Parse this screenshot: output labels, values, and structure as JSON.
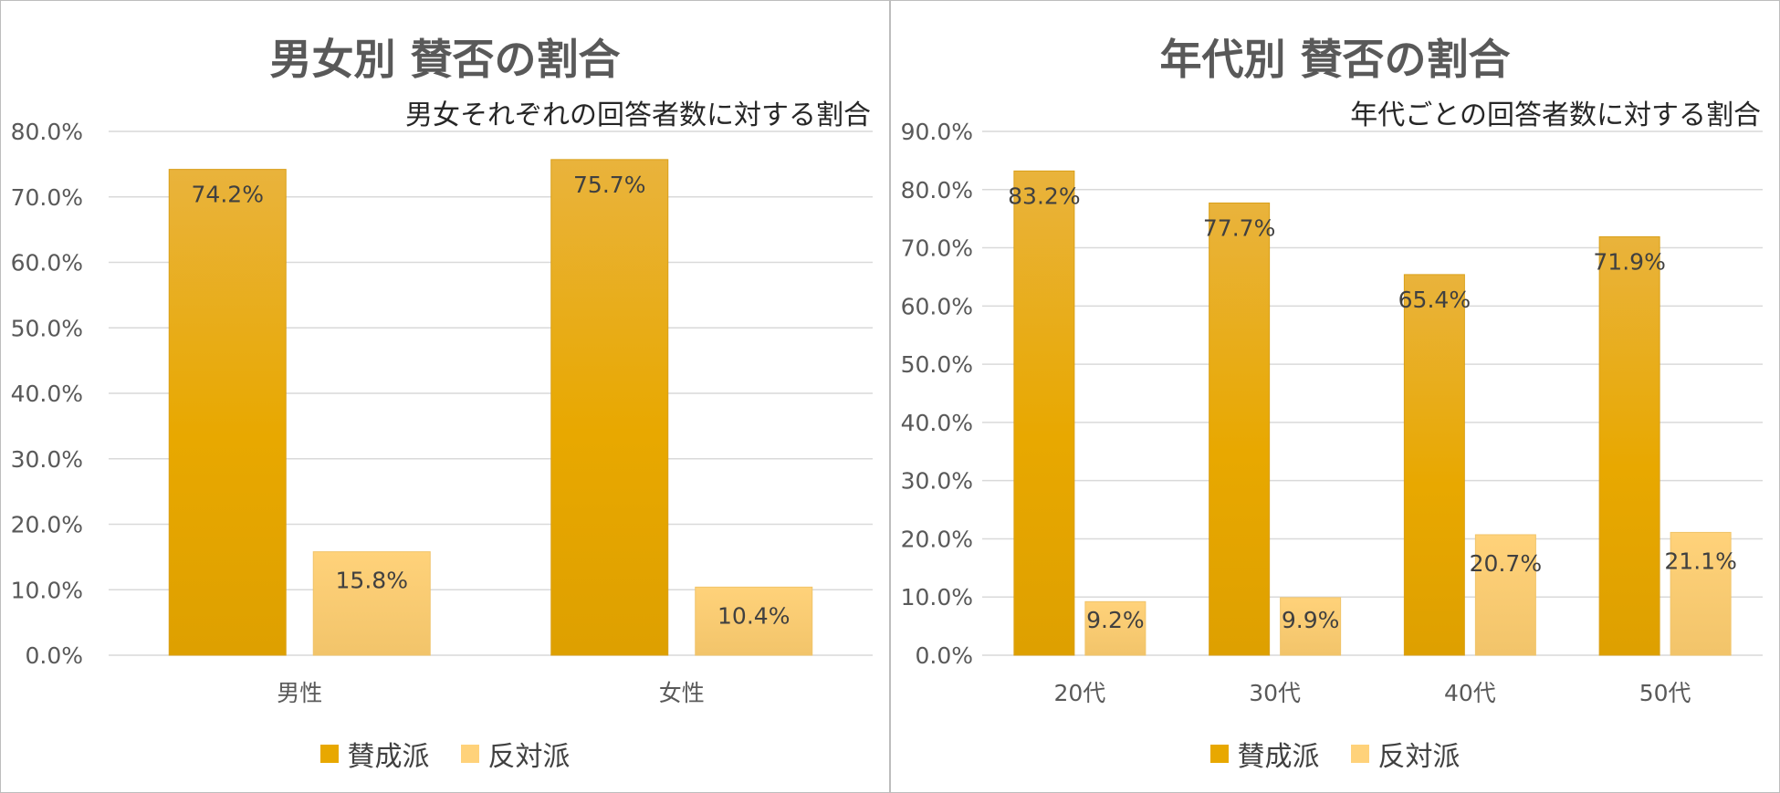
{
  "colors": {
    "support": "#e8a800",
    "support_top": "#e9b33c",
    "oppose": "#ffd27a",
    "oppose_bottom": "#f2c46a",
    "grid": "#d9d9d9",
    "axis_text": "#595959",
    "label_text": "#404040"
  },
  "chart_data": [
    {
      "type": "bar",
      "title": "男女別 賛否の割合",
      "subtitle": "男女それぞれの回答者数に対する割合",
      "categories": [
        "男性",
        "女性"
      ],
      "series": [
        {
          "name": "賛成派",
          "values": [
            74.2,
            75.7
          ],
          "labels": [
            "74.2%",
            "75.7%"
          ]
        },
        {
          "name": "反対派",
          "values": [
            15.8,
            10.4
          ],
          "labels": [
            "15.8%",
            "10.4%"
          ]
        }
      ],
      "ylim": [
        0,
        80
      ],
      "yticks": [
        "0.0%",
        "10.0%",
        "20.0%",
        "30.0%",
        "40.0%",
        "50.0%",
        "60.0%",
        "70.0%",
        "80.0%"
      ],
      "legend": [
        "賛成派",
        "反対派"
      ],
      "legend_position": "bottom",
      "grid": true
    },
    {
      "type": "bar",
      "title": "年代別 賛否の割合",
      "subtitle": "年代ごとの回答者数に対する割合",
      "categories": [
        "20代",
        "30代",
        "40代",
        "50代"
      ],
      "series": [
        {
          "name": "賛成派",
          "values": [
            83.2,
            77.7,
            65.4,
            71.9
          ],
          "labels": [
            "83.2%",
            "77.7%",
            "65.4%",
            "71.9%"
          ]
        },
        {
          "name": "反対派",
          "values": [
            9.2,
            9.9,
            20.7,
            21.1
          ],
          "labels": [
            "9.2%",
            "9.9%",
            "20.7%",
            "21.1%"
          ]
        }
      ],
      "ylim": [
        0,
        90
      ],
      "yticks": [
        "0.0%",
        "10.0%",
        "20.0%",
        "30.0%",
        "40.0%",
        "50.0%",
        "60.0%",
        "70.0%",
        "80.0%",
        "90.0%"
      ],
      "legend": [
        "賛成派",
        "反対派"
      ],
      "legend_position": "bottom",
      "grid": true
    }
  ]
}
